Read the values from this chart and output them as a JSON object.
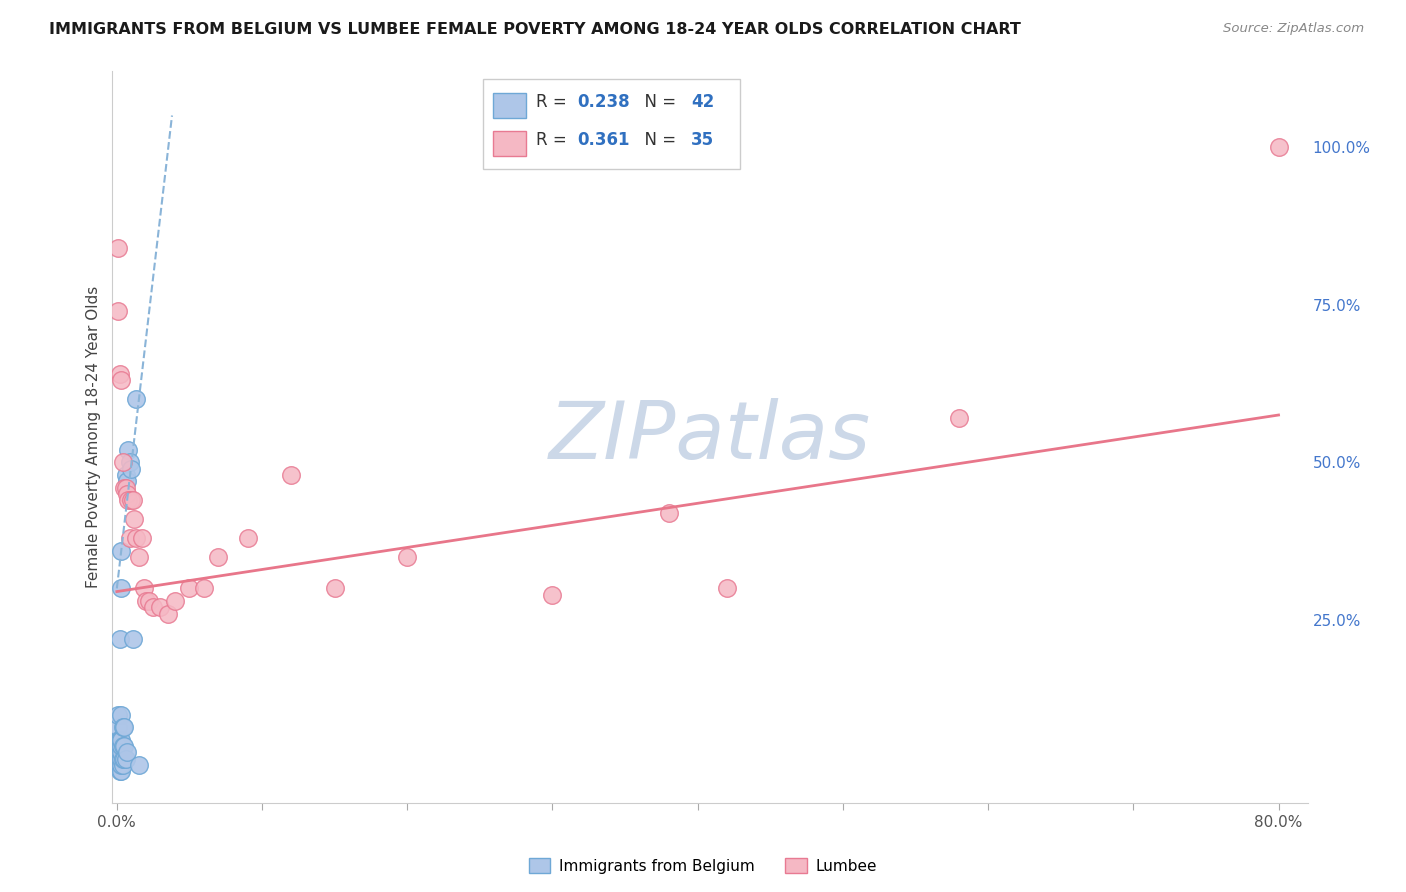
{
  "title": "IMMIGRANTS FROM BELGIUM VS LUMBEE FEMALE POVERTY AMONG 18-24 YEAR OLDS CORRELATION CHART",
  "source": "Source: ZipAtlas.com",
  "ylabel": "Female Poverty Among 18-24 Year Olds",
  "legend_blue_R": "0.238",
  "legend_blue_N": "42",
  "legend_pink_R": "0.361",
  "legend_pink_N": "35",
  "blue_fill": "#aec6e8",
  "pink_fill": "#f5b8c4",
  "blue_edge": "#6fa8d6",
  "pink_edge": "#e87a92",
  "blue_trend_color": "#8ab4d8",
  "pink_trend_color": "#e8768a",
  "legend_text_color": "#333333",
  "legend_value_color": "#3070c0",
  "right_axis_color": "#4477cc",
  "watermark_color": "#ccd8e8",
  "background_color": "#ffffff",
  "grid_color": "#d8d8d8",
  "blue_scatter_x": [
    0.0005,
    0.0008,
    0.001,
    0.001,
    0.001,
    0.001,
    0.0015,
    0.0015,
    0.0015,
    0.002,
    0.002,
    0.002,
    0.002,
    0.002,
    0.002,
    0.002,
    0.003,
    0.003,
    0.003,
    0.003,
    0.003,
    0.003,
    0.003,
    0.003,
    0.003,
    0.004,
    0.004,
    0.004,
    0.004,
    0.005,
    0.005,
    0.005,
    0.006,
    0.006,
    0.007,
    0.007,
    0.008,
    0.009,
    0.01,
    0.011,
    0.013,
    0.015
  ],
  "blue_scatter_y": [
    0.04,
    0.05,
    0.03,
    0.06,
    0.08,
    0.1,
    0.02,
    0.04,
    0.06,
    0.01,
    0.02,
    0.03,
    0.04,
    0.05,
    0.06,
    0.22,
    0.01,
    0.02,
    0.03,
    0.04,
    0.05,
    0.06,
    0.1,
    0.3,
    0.36,
    0.02,
    0.03,
    0.05,
    0.08,
    0.03,
    0.05,
    0.08,
    0.03,
    0.48,
    0.04,
    0.47,
    0.52,
    0.5,
    0.49,
    0.22,
    0.6,
    0.02
  ],
  "pink_scatter_x": [
    0.0005,
    0.001,
    0.002,
    0.003,
    0.004,
    0.005,
    0.006,
    0.007,
    0.008,
    0.009,
    0.01,
    0.011,
    0.012,
    0.013,
    0.015,
    0.017,
    0.019,
    0.02,
    0.022,
    0.025,
    0.03,
    0.035,
    0.04,
    0.05,
    0.06,
    0.07,
    0.09,
    0.12,
    0.15,
    0.2,
    0.3,
    0.38,
    0.42,
    0.58,
    0.8
  ],
  "pink_scatter_y": [
    0.84,
    0.74,
    0.64,
    0.63,
    0.5,
    0.46,
    0.46,
    0.45,
    0.44,
    0.38,
    0.44,
    0.44,
    0.41,
    0.38,
    0.35,
    0.38,
    0.3,
    0.28,
    0.28,
    0.27,
    0.27,
    0.26,
    0.28,
    0.3,
    0.3,
    0.35,
    0.38,
    0.48,
    0.3,
    0.35,
    0.29,
    0.42,
    0.3,
    0.57,
    1.0
  ],
  "blue_trend_x": [
    0.0,
    0.038
  ],
  "blue_trend_y": [
    0.3,
    1.05
  ],
  "pink_trend_x": [
    0.0,
    0.8
  ],
  "pink_trend_y": [
    0.295,
    0.575
  ],
  "xlim": [
    -0.003,
    0.82
  ],
  "ylim": [
    -0.04,
    1.12
  ],
  "xtick_positions": [
    0.0,
    0.1,
    0.2,
    0.3,
    0.4,
    0.5,
    0.6,
    0.7,
    0.8
  ],
  "xtick_labels": [
    "0.0%",
    "",
    "",
    "",
    "",
    "",
    "",
    "",
    "80.0%"
  ],
  "right_ytick_positions": [
    0.0,
    0.25,
    0.5,
    0.75,
    1.0
  ],
  "right_ytick_labels": [
    "",
    "25.0%",
    "50.0%",
    "75.0%",
    "100.0%"
  ]
}
